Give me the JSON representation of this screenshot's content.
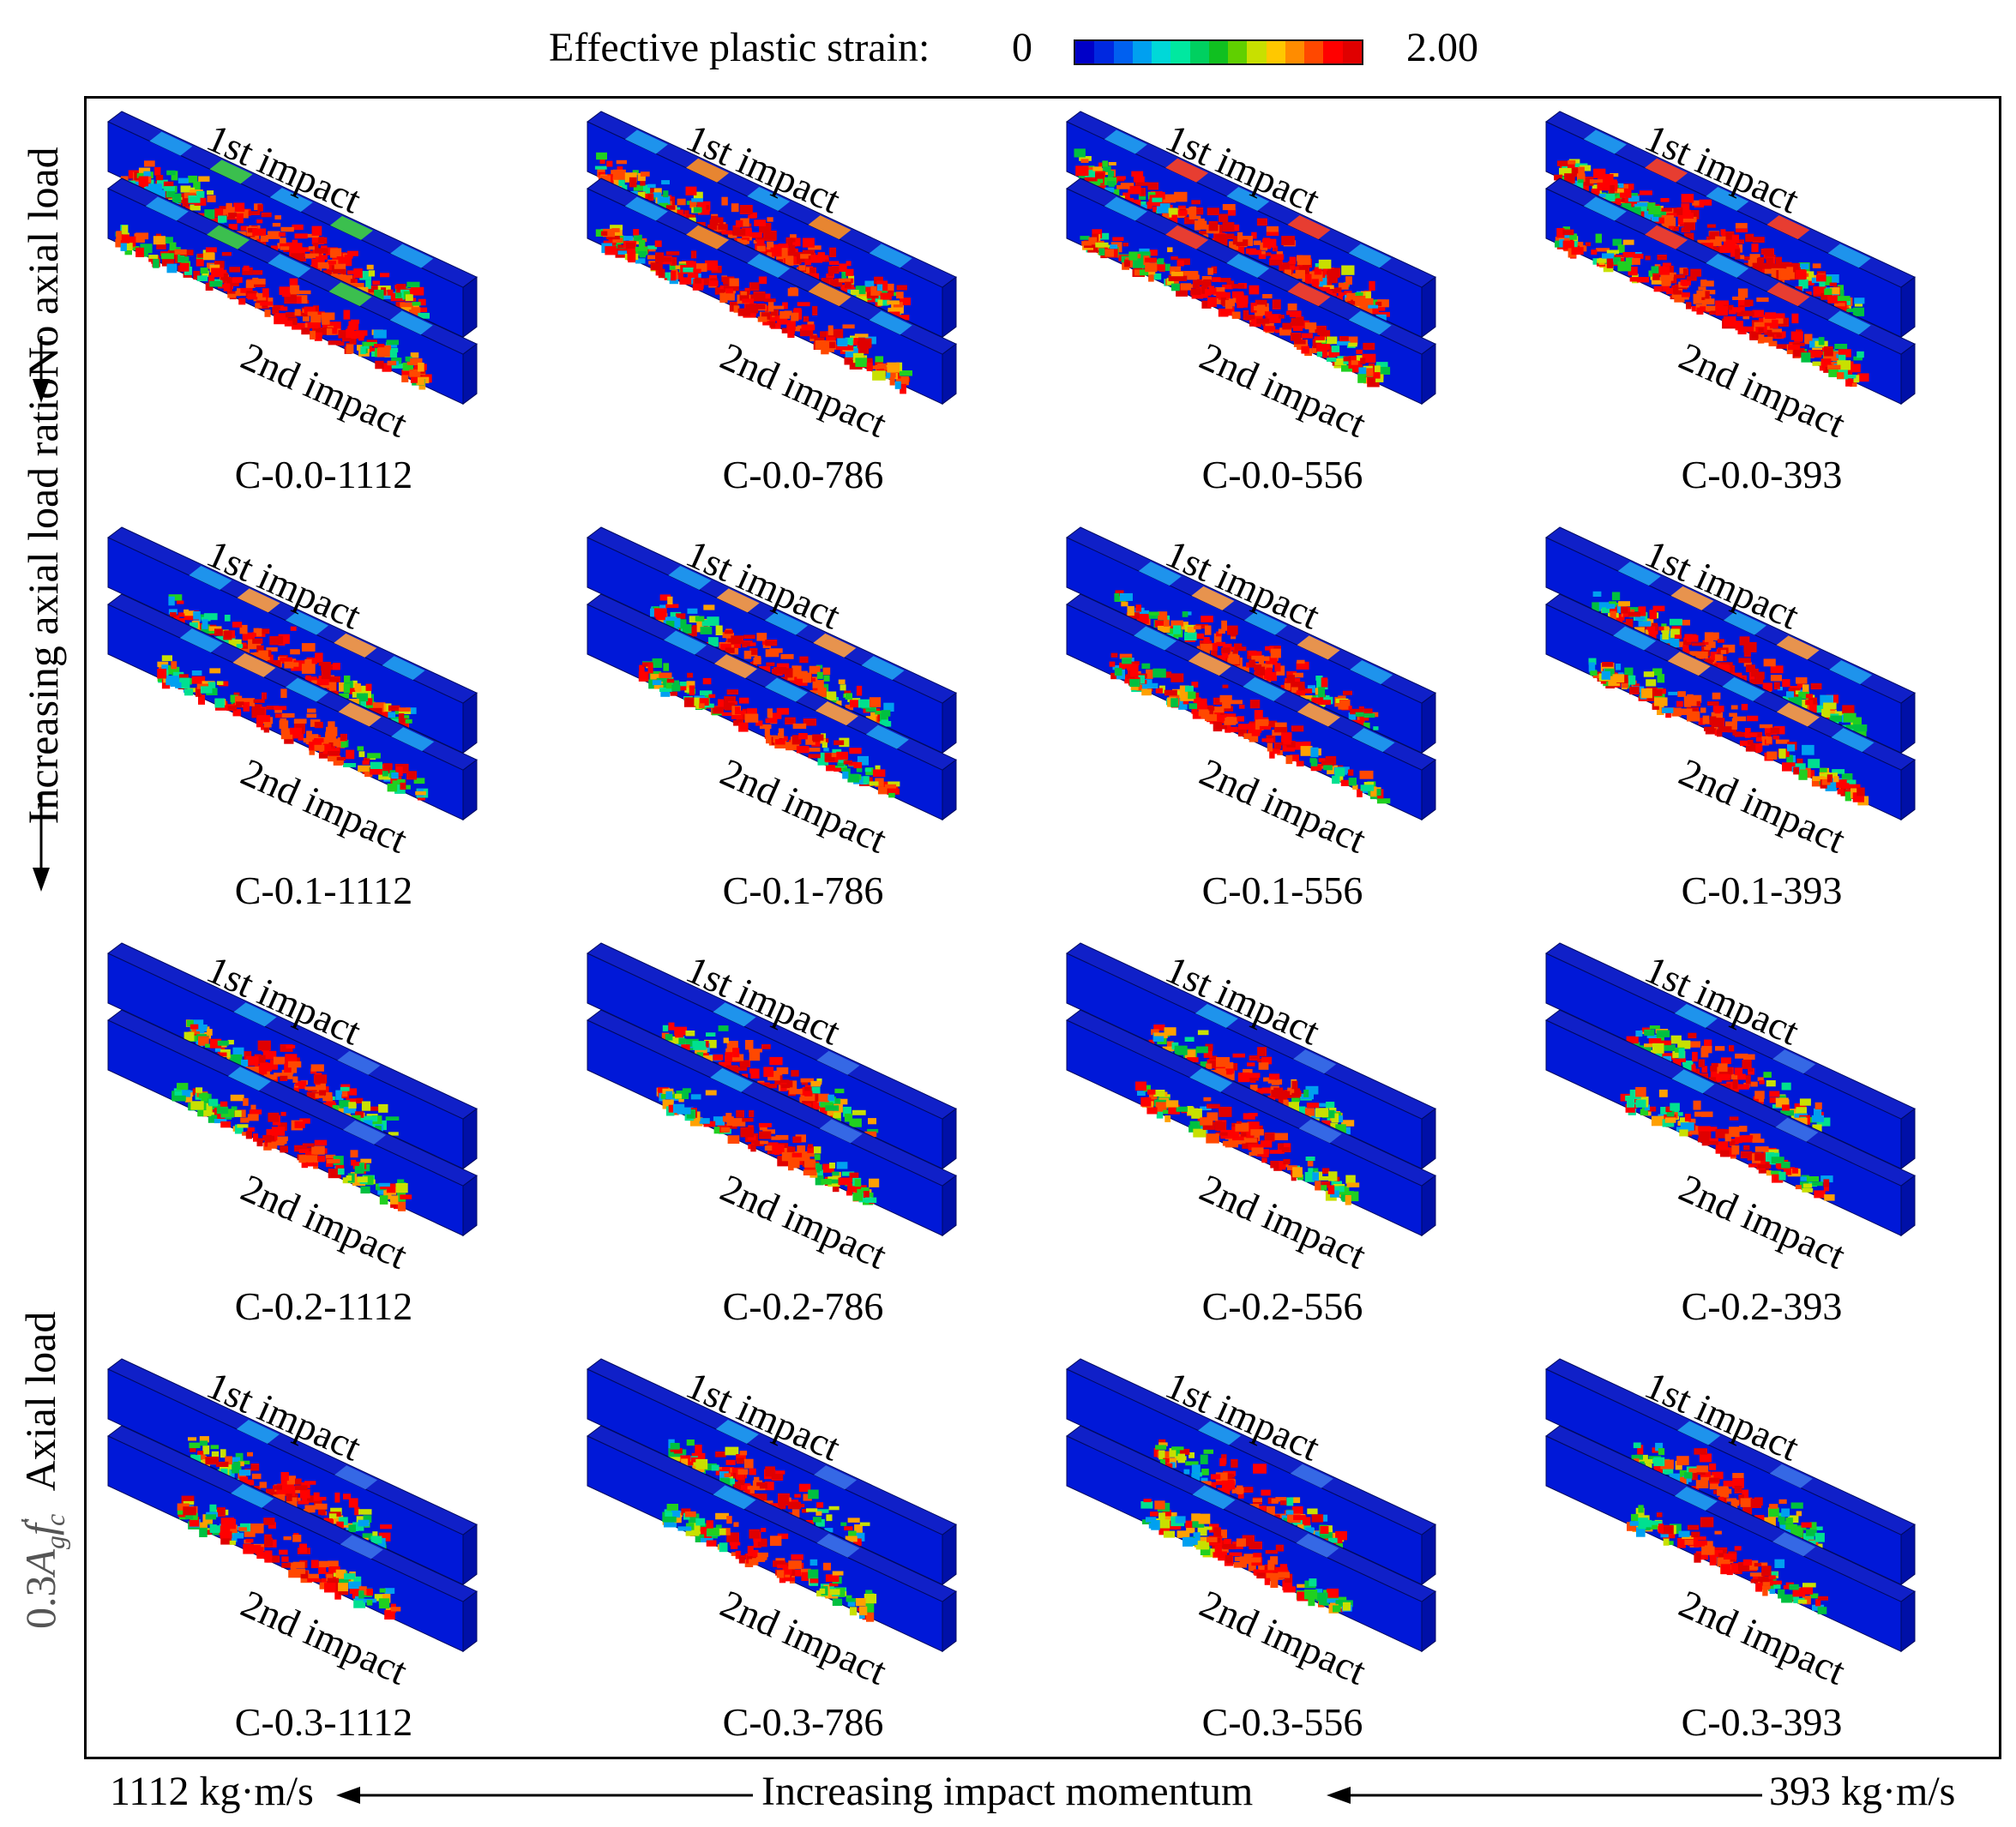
{
  "legend": {
    "title": "Effective plastic strain:",
    "min": "0",
    "max": "2.00",
    "colors": [
      "#0000c8",
      "#0028e0",
      "#0060f0",
      "#00a0f0",
      "#00d8d8",
      "#00e8a0",
      "#00d060",
      "#10c020",
      "#60d000",
      "#c8e000",
      "#ffc800",
      "#ff8c00",
      "#ff4800",
      "#ff0000",
      "#e00000"
    ]
  },
  "labels": {
    "first_impact": "1st impact",
    "second_impact": "2nd impact"
  },
  "y_axis": {
    "top": "No axial load",
    "middle": "Increasing axial load ratio",
    "bottom_formula_coef": "0.3",
    "bottom_formula_A": "A",
    "bottom_formula_g": "g",
    "bottom_formula_f": "f",
    "bottom_formula_c": "c",
    "bottom_formula_prime": "′",
    "bottom_text": "Axial load"
  },
  "x_axis": {
    "left": "1112 kg·m/s",
    "middle": "Increasing impact momentum",
    "right": "393 kg·m/s"
  },
  "grid": [
    {
      "row": 0,
      "col": 0,
      "label": "C-0.0-1112",
      "damage1": 0.9,
      "damage2": 1.0,
      "style": "green"
    },
    {
      "row": 0,
      "col": 1,
      "label": "C-0.0-786",
      "damage1": 0.95,
      "damage2": 1.0,
      "style": "orange"
    },
    {
      "row": 0,
      "col": 2,
      "label": "C-0.0-556",
      "damage1": 0.95,
      "damage2": 1.0,
      "style": "red"
    },
    {
      "row": 0,
      "col": 3,
      "label": "C-0.0-393",
      "damage1": 0.95,
      "damage2": 1.0,
      "style": "red"
    },
    {
      "row": 1,
      "col": 0,
      "label": "C-0.1-1112",
      "damage1": 0.5,
      "damage2": 0.6,
      "style": "mixed"
    },
    {
      "row": 1,
      "col": 1,
      "label": "C-0.1-786",
      "damage1": 0.5,
      "damage2": 0.55,
      "style": "mixed"
    },
    {
      "row": 1,
      "col": 2,
      "label": "C-0.1-556",
      "damage1": 0.6,
      "damage2": 0.65,
      "style": "mixed"
    },
    {
      "row": 1,
      "col": 3,
      "label": "C-0.1-393",
      "damage1": 0.6,
      "damage2": 0.65,
      "style": "mixed"
    },
    {
      "row": 2,
      "col": 0,
      "label": "C-0.2-1112",
      "damage1": 0.35,
      "damage2": 0.45,
      "style": "local"
    },
    {
      "row": 2,
      "col": 1,
      "label": "C-0.2-786",
      "damage1": 0.35,
      "damage2": 0.4,
      "style": "local"
    },
    {
      "row": 2,
      "col": 2,
      "label": "C-0.2-556",
      "damage1": 0.3,
      "damage2": 0.4,
      "style": "local"
    },
    {
      "row": 2,
      "col": 3,
      "label": "C-0.2-393",
      "damage1": 0.3,
      "damage2": 0.35,
      "style": "local"
    },
    {
      "row": 3,
      "col": 0,
      "label": "C-0.3-1112",
      "damage1": 0.3,
      "damage2": 0.4,
      "style": "local"
    },
    {
      "row": 3,
      "col": 1,
      "label": "C-0.3-786",
      "damage1": 0.3,
      "damage2": 0.35,
      "style": "local"
    },
    {
      "row": 3,
      "col": 2,
      "label": "C-0.3-556",
      "damage1": 0.25,
      "damage2": 0.35,
      "style": "local"
    },
    {
      "row": 3,
      "col": 3,
      "label": "C-0.3-393",
      "damage1": 0.25,
      "damage2": 0.3,
      "style": "local"
    }
  ]
}
